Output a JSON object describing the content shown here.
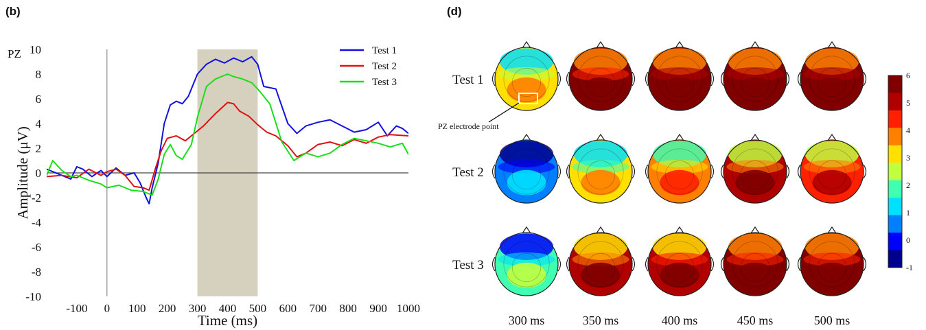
{
  "panels": {
    "left_label": "(b)",
    "right_label": "(d)"
  },
  "chart_data": [
    {
      "type": "line",
      "channel_label": "PZ",
      "xlabel": "Time (ms)",
      "ylabel": "Amplitude (μV)",
      "xlim": [
        -200,
        1000
      ],
      "ylim": [
        -10,
        10
      ],
      "x_ticks": [
        "-100",
        "0",
        "100",
        "200",
        "300",
        "400",
        "500",
        "600",
        "700",
        "800",
        "900",
        "1000"
      ],
      "y_ticks": [
        "10",
        "8",
        "6",
        "4",
        "2",
        "0",
        "-2",
        "-4",
        "-6",
        "-8",
        "-10"
      ],
      "highlight_window": [
        300,
        500
      ],
      "highlight_color": "#d6d0bf",
      "legend_position": "top-right",
      "series": [
        {
          "name": "Test 1",
          "color": "#1010e0",
          "x": [
            -200,
            -150,
            -120,
            -100,
            -80,
            -50,
            -20,
            0,
            30,
            60,
            90,
            110,
            130,
            140,
            150,
            170,
            190,
            210,
            230,
            250,
            270,
            300,
            330,
            360,
            390,
            420,
            450,
            480,
            500,
            520,
            560,
            600,
            630,
            660,
            700,
            740,
            780,
            820,
            860,
            900,
            930,
            960,
            980,
            1000
          ],
          "y": [
            0.3,
            -0.2,
            -0.5,
            0.5,
            0.3,
            -0.3,
            0.2,
            -0.3,
            0.4,
            -0.2,
            0.0,
            -0.8,
            -2.0,
            -2.5,
            -1.2,
            0.8,
            4.0,
            5.5,
            5.8,
            5.6,
            6.2,
            8.0,
            8.8,
            9.2,
            8.9,
            9.3,
            9.0,
            9.4,
            8.8,
            7.0,
            6.8,
            4.0,
            3.2,
            3.8,
            4.1,
            4.3,
            3.8,
            3.3,
            3.5,
            4.1,
            3.0,
            3.8,
            3.6,
            3.2
          ]
        },
        {
          "name": "Test 2",
          "color": "#e01010",
          "x": [
            -200,
            -150,
            -100,
            -60,
            -20,
            0,
            30,
            60,
            90,
            120,
            140,
            160,
            180,
            200,
            230,
            260,
            290,
            320,
            360,
            400,
            420,
            440,
            470,
            500,
            530,
            560,
            600,
            630,
            660,
            700,
            740,
            780,
            820,
            860,
            900,
            940,
            1000
          ],
          "y": [
            -0.3,
            -0.2,
            -0.4,
            0.3,
            -0.2,
            0.1,
            0.3,
            -0.2,
            -1.1,
            -1.2,
            -1.4,
            0.3,
            1.8,
            2.8,
            3.0,
            2.6,
            3.2,
            3.8,
            4.8,
            5.7,
            5.6,
            5.0,
            4.6,
            3.9,
            3.3,
            3.0,
            2.2,
            1.3,
            1.6,
            2.3,
            2.5,
            2.2,
            2.7,
            2.4,
            2.9,
            3.1,
            3.0
          ]
        },
        {
          "name": "Test 3",
          "color": "#18e018",
          "x": [
            -200,
            -180,
            -150,
            -120,
            -100,
            -60,
            -20,
            0,
            40,
            80,
            120,
            150,
            170,
            190,
            210,
            230,
            250,
            280,
            300,
            330,
            360,
            400,
            420,
            450,
            480,
            500,
            540,
            580,
            620,
            660,
            700,
            740,
            780,
            820,
            860,
            900,
            940,
            980,
            1000
          ],
          "y": [
            -0.2,
            1.0,
            0.2,
            -0.3,
            -0.2,
            -0.6,
            -0.9,
            -1.2,
            -1.0,
            -1.4,
            -1.5,
            -1.8,
            -0.5,
            1.5,
            2.3,
            1.4,
            1.1,
            2.3,
            4.5,
            7.0,
            7.6,
            8.0,
            7.8,
            7.6,
            7.3,
            6.8,
            5.6,
            2.5,
            1.0,
            1.6,
            1.3,
            1.6,
            2.3,
            2.8,
            2.6,
            2.4,
            2.1,
            2.4,
            1.5
          ]
        }
      ]
    },
    {
      "type": "heatmap",
      "row_labels": [
        "Test 1",
        "Test 2",
        "Test 3"
      ],
      "col_labels": [
        "300 ms",
        "350 ms",
        "400 ms",
        "450 ms",
        "500 ms"
      ],
      "colorbar_ticks": [
        "6",
        "5",
        "4",
        "3",
        "2",
        "1",
        "0",
        "-1"
      ],
      "colorbar_range": [
        -1,
        6
      ],
      "annotation": "PZ electrode point",
      "mean_levels": [
        [
          3.2,
          5.8,
          6.0,
          6.0,
          6.0
        ],
        [
          0.6,
          3.0,
          4.0,
          5.0,
          4.6
        ],
        [
          1.8,
          5.2,
          5.6,
          5.9,
          5.9
        ]
      ],
      "colormap": [
        "#00008f",
        "#0000ff",
        "#0080ff",
        "#00e0ff",
        "#40ffb0",
        "#c0ff40",
        "#ffe000",
        "#ff8000",
        "#ff2000",
        "#b00000",
        "#800000"
      ]
    }
  ]
}
